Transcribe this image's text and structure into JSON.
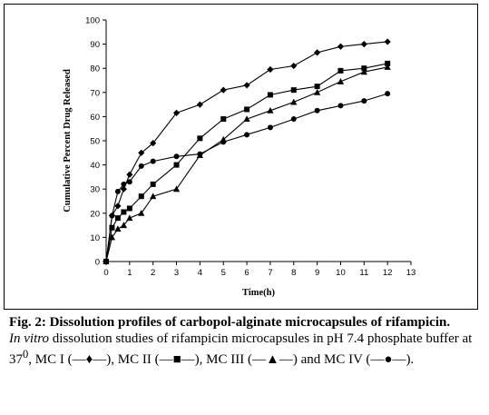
{
  "chart_data": {
    "type": "line",
    "title": "",
    "xlabel": "Time(h)",
    "ylabel": "Cumulative Percent Drug Released",
    "xlim": [
      0,
      13
    ],
    "ylim": [
      0,
      100
    ],
    "xticks": [
      0,
      1,
      2,
      3,
      4,
      5,
      6,
      7,
      8,
      9,
      10,
      11,
      12,
      13
    ],
    "yticks": [
      0,
      10,
      20,
      30,
      40,
      50,
      60,
      70,
      80,
      90,
      100
    ],
    "grid": false,
    "legend": "none",
    "series": [
      {
        "marker": "diamond",
        "x": [
          0,
          0.25,
          0.5,
          0.75,
          1,
          1.5,
          2,
          3,
          4,
          5,
          6,
          7,
          8,
          9,
          10,
          11,
          12
        ],
        "y": [
          0,
          19,
          23,
          30,
          36,
          45,
          49,
          61.5,
          65,
          71,
          73,
          79.5,
          81,
          86.5,
          89,
          90,
          91
        ]
      },
      {
        "marker": "square",
        "x": [
          0,
          0.25,
          0.5,
          0.75,
          1,
          1.5,
          2,
          3,
          4,
          5,
          6,
          7,
          8,
          9,
          10,
          11,
          12
        ],
        "y": [
          0,
          14,
          18,
          20.5,
          22,
          27,
          32,
          40,
          51,
          59,
          63,
          69,
          71,
          72.5,
          79,
          80,
          82
        ]
      },
      {
        "marker": "triangle",
        "x": [
          0,
          0.25,
          0.5,
          0.75,
          1,
          1.5,
          2,
          3,
          4,
          5,
          6,
          7,
          8,
          9,
          10,
          11,
          12
        ],
        "y": [
          0,
          10,
          13.5,
          15,
          18,
          20,
          27,
          30,
          44,
          50.5,
          59,
          62.5,
          66,
          70,
          74.5,
          78.5,
          80.5
        ]
      },
      {
        "marker": "circle",
        "x": [
          0,
          0.25,
          0.5,
          0.75,
          1,
          1.5,
          2,
          3,
          4,
          5,
          6,
          7,
          8,
          9,
          10,
          11,
          12
        ],
        "y": [
          0,
          19,
          29,
          32,
          33,
          39.5,
          41.5,
          43.5,
          44.5,
          49.5,
          52.5,
          55.5,
          59,
          62.5,
          64.5,
          66.5,
          69.5
        ]
      }
    ]
  },
  "caption": {
    "heading": "Fig. 2: Dissolution profiles of carbopol-alginate microcapsules of rifampicin.",
    "italic_lead": "In vitro",
    "body_part1": " dissolution studies of rifampicin microcapsules in pH 7.4 phosphate buffer at 37",
    "superscript": "0",
    "body_part2": ", MC I (",
    "mc1_symbol": "—♦—",
    "sep_1": "), MC II (",
    "mc2_symbol": "—■—",
    "sep_2": "), MC III (",
    "mc3_symbol": "—▲—",
    "sep_3": ") and MC IV (",
    "mc4_symbol": "—●—",
    "tail": ")."
  }
}
